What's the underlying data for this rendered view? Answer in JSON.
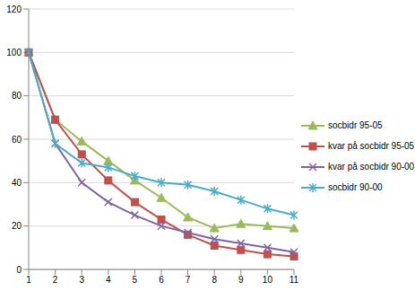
{
  "chart_data": {
    "type": "line",
    "categories": [
      1,
      2,
      3,
      4,
      5,
      6,
      7,
      8,
      9,
      10,
      11
    ],
    "ylim": [
      0,
      120
    ],
    "yticks": [
      0,
      20,
      40,
      60,
      80,
      100,
      120
    ],
    "grid": true,
    "legend": "right",
    "series": [
      {
        "name": "socbidr 95-05",
        "color": "#9bbb59",
        "marker": "triangle",
        "values": [
          100,
          69,
          59,
          50,
          41,
          33,
          24,
          19,
          21,
          20,
          19
        ]
      },
      {
        "name": "kvar på socbidr 95-05",
        "color": "#c0504d",
        "marker": "square",
        "values": [
          100,
          69,
          53,
          41,
          31,
          23,
          16,
          11,
          9,
          7,
          6
        ]
      },
      {
        "name": "kvar på socbidr 90-00",
        "color": "#8064a2",
        "marker": "x",
        "values": [
          100,
          58,
          40,
          31,
          25,
          20,
          17,
          14,
          12,
          10,
          8
        ]
      },
      {
        "name": "socbidr 90-00",
        "color": "#4bacc6",
        "marker": "star",
        "values": [
          100,
          58,
          49,
          47,
          43,
          40,
          39,
          36,
          32,
          28,
          25
        ]
      }
    ]
  }
}
